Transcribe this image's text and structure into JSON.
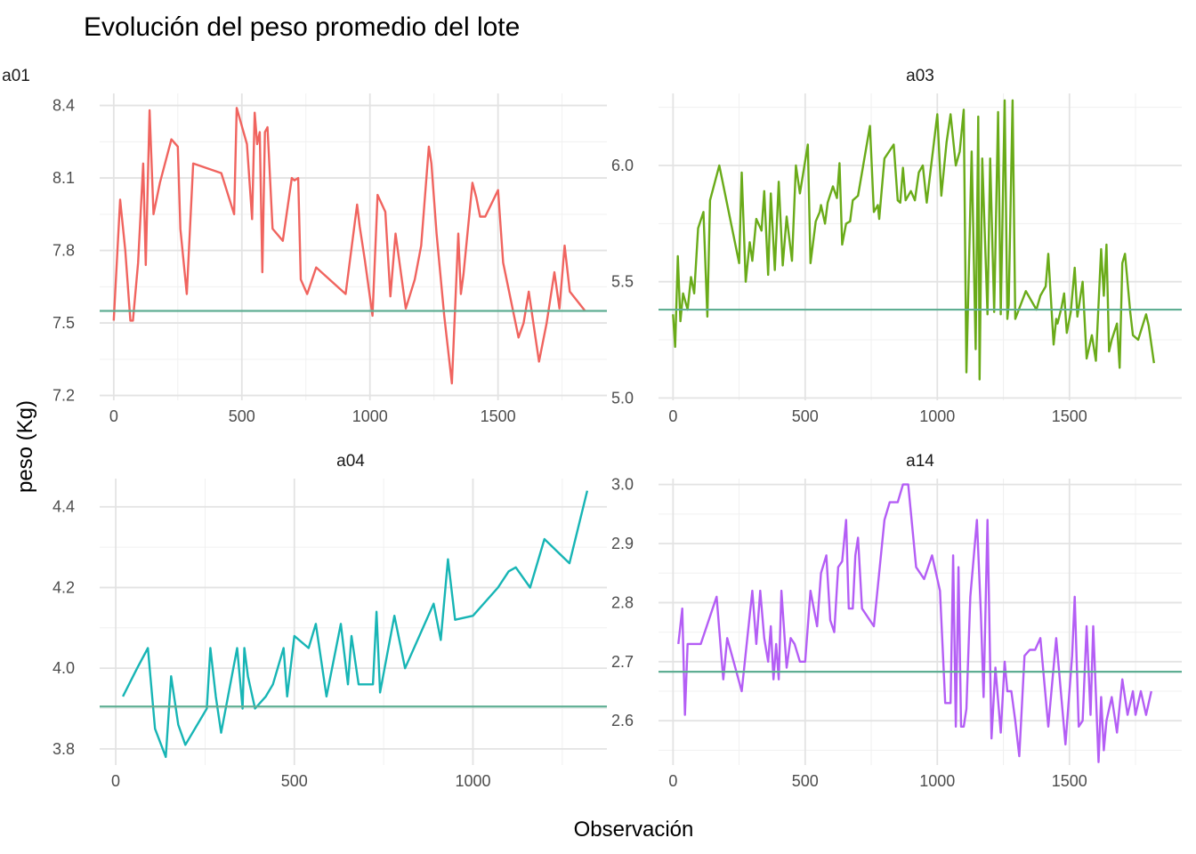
{
  "chart_data": {
    "type": "line",
    "title": "Evolución del peso promedio del lote",
    "xlabel": "Observación",
    "ylabel": "peso (Kg)",
    "grid": true,
    "legend": "none",
    "reference_line_color": "#5fae93",
    "panels": [
      {
        "name": "a01",
        "color": "#f0645f",
        "xlim": [
          -55,
          1925
        ],
        "ylim": [
          7.18,
          8.45
        ],
        "xticks": [
          0,
          500,
          1000,
          1500
        ],
        "xtick_labels": [
          "0",
          "500",
          "1000",
          "1500"
        ],
        "yticks": [
          7.2,
          7.5,
          7.8,
          8.1,
          8.4
        ],
        "ytick_labels": [
          "7.2",
          "7.5",
          "7.8",
          "8.1",
          "8.4"
        ],
        "reference": 7.55,
        "x": [
          0,
          25,
          45,
          65,
          75,
          95,
          115,
          125,
          140,
          155,
          180,
          225,
          250,
          260,
          285,
          310,
          420,
          470,
          480,
          520,
          540,
          550,
          560,
          570,
          580,
          590,
          600,
          620,
          660,
          695,
          705,
          720,
          730,
          755,
          790,
          905,
          950,
          960,
          980,
          1010,
          1030,
          1060,
          1080,
          1100,
          1140,
          1175,
          1200,
          1230,
          1240,
          1260,
          1290,
          1320,
          1345,
          1355,
          1365,
          1400,
          1415,
          1430,
          1450,
          1500,
          1520,
          1580,
          1600,
          1620,
          1660,
          1690,
          1720,
          1740,
          1760,
          1780,
          1840
        ],
        "y": [
          7.51,
          8.01,
          7.8,
          7.51,
          7.51,
          7.75,
          8.16,
          7.74,
          8.38,
          7.95,
          8.08,
          8.26,
          8.23,
          7.89,
          7.62,
          8.16,
          8.12,
          7.95,
          8.39,
          8.24,
          7.93,
          8.37,
          8.24,
          8.29,
          7.71,
          8.29,
          8.31,
          7.89,
          7.84,
          8.1,
          8.09,
          8.1,
          7.68,
          7.62,
          7.73,
          7.62,
          7.99,
          7.9,
          7.76,
          7.53,
          8.03,
          7.96,
          7.61,
          7.87,
          7.56,
          7.68,
          7.82,
          8.23,
          8.16,
          7.87,
          7.53,
          7.25,
          7.87,
          7.62,
          7.7,
          8.08,
          8.02,
          7.94,
          7.94,
          8.05,
          7.75,
          7.44,
          7.5,
          7.63,
          7.34,
          7.5,
          7.71,
          7.56,
          7.82,
          7.63,
          7.55
        ]
      },
      {
        "name": "a03",
        "color": "#6aab19",
        "xlim": [
          -55,
          1925
        ],
        "ylim": [
          4.99,
          6.31
        ],
        "xticks": [
          0,
          500,
          1000,
          1500
        ],
        "xtick_labels": [
          "0",
          "500",
          "1000",
          "1500"
        ],
        "yticks": [
          5.0,
          5.5,
          6.0
        ],
        "ytick_labels": [
          "5.0",
          "5.5",
          "6.0"
        ],
        "reference": 5.38,
        "x": [
          0,
          8,
          18,
          28,
          38,
          55,
          68,
          80,
          95,
          115,
          130,
          140,
          175,
          250,
          260,
          275,
          290,
          300,
          315,
          335,
          345,
          360,
          370,
          385,
          400,
          415,
          430,
          450,
          465,
          480,
          510,
          520,
          540,
          555,
          560,
          575,
          585,
          605,
          620,
          630,
          640,
          655,
          670,
          680,
          700,
          745,
          760,
          775,
          780,
          800,
          835,
          850,
          860,
          870,
          880,
          900,
          915,
          930,
          945,
          960,
          1000,
          1015,
          1035,
          1050,
          1070,
          1085,
          1100,
          1110,
          1130,
          1145,
          1155,
          1160,
          1170,
          1190,
          1200,
          1215,
          1230,
          1240,
          1255,
          1265,
          1270,
          1285,
          1295,
          1335,
          1375,
          1390,
          1410,
          1420,
          1440,
          1450,
          1455,
          1470,
          1480,
          1490,
          1505,
          1520,
          1530,
          1550,
          1565,
          1585,
          1600,
          1620,
          1630,
          1640,
          1650,
          1660,
          1680,
          1690,
          1700,
          1710,
          1730,
          1740,
          1760,
          1790,
          1800,
          1820
        ],
        "y": [
          5.36,
          5.22,
          5.61,
          5.33,
          5.45,
          5.38,
          5.52,
          5.45,
          5.73,
          5.8,
          5.35,
          5.85,
          6.0,
          5.58,
          5.97,
          5.5,
          5.67,
          5.59,
          5.77,
          5.72,
          5.89,
          5.53,
          5.88,
          5.55,
          5.93,
          5.57,
          5.78,
          5.59,
          6.0,
          5.88,
          6.09,
          5.58,
          5.76,
          5.8,
          5.83,
          5.75,
          5.84,
          5.91,
          5.86,
          6.01,
          5.66,
          5.75,
          5.76,
          5.85,
          5.87,
          6.17,
          5.8,
          5.83,
          5.77,
          6.03,
          6.09,
          5.85,
          5.84,
          5.99,
          5.85,
          5.89,
          5.85,
          5.97,
          6.0,
          5.84,
          6.22,
          5.87,
          6.1,
          6.22,
          6.0,
          6.06,
          6.24,
          5.11,
          6.06,
          5.21,
          6.21,
          5.08,
          6.03,
          5.36,
          6.03,
          5.37,
          6.23,
          5.36,
          6.28,
          5.34,
          5.4,
          6.28,
          5.34,
          5.46,
          5.38,
          5.44,
          5.48,
          5.62,
          5.23,
          5.34,
          5.32,
          5.39,
          5.45,
          5.28,
          5.37,
          5.56,
          5.35,
          5.5,
          5.17,
          5.27,
          5.16,
          5.64,
          5.44,
          5.66,
          5.2,
          5.25,
          5.32,
          5.13,
          5.58,
          5.62,
          5.37,
          5.27,
          5.25,
          5.36,
          5.31,
          5.15
        ],
        "xlim_note": "",
        "_unused": ""
      },
      {
        "name": "a04",
        "color": "#17b5b5",
        "xlim": [
          -45,
          1375
        ],
        "ylim": [
          3.76,
          4.47
        ],
        "xticks": [
          0,
          500,
          1000
        ],
        "xtick_labels": [
          "0",
          "500",
          "1000"
        ],
        "yticks": [
          3.8,
          4.0,
          4.2,
          4.4
        ],
        "ytick_labels": [
          "3.8",
          "4.0",
          "4.2",
          "4.4"
        ],
        "reference": 3.905,
        "x": [
          20,
          60,
          90,
          110,
          140,
          155,
          175,
          195,
          255,
          265,
          280,
          295,
          340,
          355,
          360,
          370,
          390,
          420,
          440,
          470,
          480,
          500,
          540,
          560,
          590,
          630,
          650,
          660,
          680,
          720,
          730,
          740,
          780,
          810,
          890,
          910,
          930,
          950,
          1000,
          1070,
          1100,
          1120,
          1160,
          1200,
          1270,
          1320
        ],
        "y": [
          3.93,
          4.0,
          4.05,
          3.85,
          3.78,
          3.98,
          3.86,
          3.81,
          3.9,
          4.05,
          3.93,
          3.84,
          4.05,
          3.9,
          4.05,
          3.98,
          3.9,
          3.93,
          3.96,
          4.05,
          3.93,
          4.08,
          4.05,
          4.11,
          3.93,
          4.11,
          3.96,
          4.08,
          3.96,
          3.96,
          4.14,
          3.94,
          4.13,
          4.0,
          4.16,
          4.07,
          4.27,
          4.12,
          4.13,
          4.2,
          4.24,
          4.25,
          4.2,
          4.32,
          4.26,
          4.44
        ]
      },
      {
        "name": "a14",
        "color": "#b45ef5",
        "xlim": [
          -55,
          1925
        ],
        "ylim": [
          2.525,
          3.01
        ],
        "xticks": [
          0,
          500,
          1000,
          1500
        ],
        "xtick_labels": [
          "0",
          "500",
          "1000",
          "1500"
        ],
        "yticks": [
          2.6,
          2.7,
          2.8,
          2.9,
          3.0
        ],
        "ytick_labels": [
          "2.6",
          "2.7",
          "2.8",
          "2.9",
          "3.0"
        ],
        "reference": 2.683,
        "x": [
          20,
          35,
          45,
          55,
          65,
          105,
          165,
          190,
          205,
          260,
          300,
          315,
          330,
          345,
          360,
          370,
          380,
          390,
          400,
          410,
          430,
          445,
          460,
          480,
          500,
          520,
          545,
          560,
          580,
          595,
          610,
          625,
          640,
          655,
          665,
          680,
          690,
          700,
          715,
          760,
          800,
          820,
          850,
          870,
          890,
          920,
          950,
          980,
          1010,
          1030,
          1050,
          1060,
          1070,
          1080,
          1090,
          1100,
          1110,
          1125,
          1150,
          1165,
          1175,
          1190,
          1205,
          1220,
          1240,
          1255,
          1265,
          1280,
          1295,
          1310,
          1330,
          1350,
          1370,
          1390,
          1420,
          1450,
          1485,
          1510,
          1520,
          1535,
          1550,
          1565,
          1580,
          1590,
          1610,
          1620,
          1630,
          1640,
          1660,
          1680,
          1700,
          1720,
          1740,
          1750,
          1770,
          1790,
          1810
        ],
        "y": [
          2.73,
          2.79,
          2.61,
          2.73,
          2.73,
          2.73,
          2.81,
          2.67,
          2.74,
          2.65,
          2.82,
          2.73,
          2.82,
          2.74,
          2.7,
          2.76,
          2.67,
          2.73,
          2.67,
          2.82,
          2.69,
          2.74,
          2.73,
          2.7,
          2.7,
          2.82,
          2.76,
          2.85,
          2.88,
          2.77,
          2.75,
          2.86,
          2.87,
          2.94,
          2.79,
          2.79,
          2.88,
          2.91,
          2.79,
          2.76,
          2.94,
          2.97,
          2.97,
          3.0,
          3.0,
          2.86,
          2.84,
          2.88,
          2.82,
          2.63,
          2.63,
          2.88,
          2.59,
          2.86,
          2.59,
          2.59,
          2.62,
          2.81,
          2.94,
          2.78,
          2.64,
          2.94,
          2.57,
          2.69,
          2.58,
          2.7,
          2.65,
          2.65,
          2.6,
          2.54,
          2.71,
          2.72,
          2.72,
          2.74,
          2.59,
          2.74,
          2.56,
          2.71,
          2.81,
          2.59,
          2.6,
          2.76,
          2.61,
          2.76,
          2.53,
          2.64,
          2.55,
          2.6,
          2.64,
          2.58,
          2.67,
          2.61,
          2.65,
          2.61,
          2.65,
          2.61,
          2.65
        ]
      }
    ]
  }
}
